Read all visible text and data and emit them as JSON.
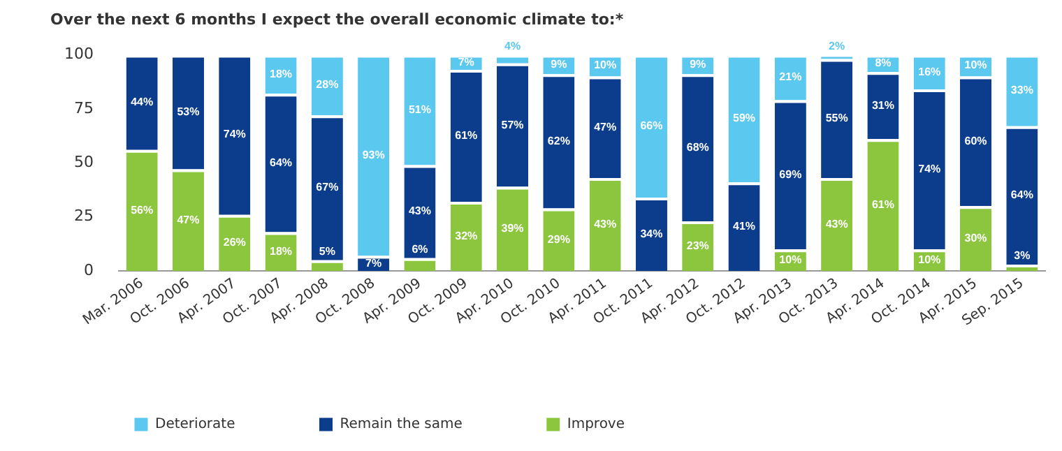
{
  "chart_data": {
    "type": "bar",
    "stacked": true,
    "title": "Over the next 6 months I expect the overall economic climate to:*",
    "categories": [
      "Mar. 2006",
      "Oct. 2006",
      "Apr. 2007",
      "Oct. 2007",
      "Apr. 2008",
      "Oct. 2008",
      "Apr. 2009",
      "Oct. 2009",
      "Apr. 2010",
      "Oct. 2010",
      "Apr. 2011",
      "Oct. 2011",
      "Apr. 2012",
      "Oct. 2012",
      "Apr. 2013",
      "Oct. 2013",
      "Apr. 2014",
      "Oct. 2014",
      "Apr. 2015",
      "Sep. 2015"
    ],
    "series": [
      {
        "name": "Improve",
        "color": "#8cc63f",
        "values": [
          56,
          47,
          26,
          18,
          5,
          null,
          6,
          32,
          39,
          29,
          43,
          null,
          23,
          null,
          10,
          43,
          61,
          10,
          30,
          3
        ],
        "value_labels": [
          "56%",
          "47%",
          "26%",
          "18%",
          "5%",
          null,
          "6%",
          "32%",
          "39%",
          "29%",
          "43%",
          null,
          "23%",
          null,
          "10%",
          "43%",
          "61%",
          "10%",
          "30%",
          "3%"
        ]
      },
      {
        "name": "Remain the same",
        "color": "#0b3d8c",
        "values": [
          44,
          53,
          74,
          64,
          67,
          7,
          43,
          61,
          57,
          62,
          47,
          34,
          68,
          41,
          69,
          55,
          31,
          74,
          60,
          64
        ],
        "value_labels": [
          "44%",
          "53%",
          "74%",
          "64%",
          "67%",
          "7%",
          "43%",
          "61%",
          "57%",
          "62%",
          "47%",
          "34%",
          "68%",
          "41%",
          "69%",
          "55%",
          "31%",
          "74%",
          "60%",
          "64%"
        ]
      },
      {
        "name": "Deteriorate",
        "color": "#5bc8f0",
        "values": [
          null,
          null,
          null,
          18,
          28,
          93,
          51,
          7,
          4,
          9,
          10,
          66,
          9,
          59,
          21,
          2,
          8,
          16,
          10,
          33
        ],
        "value_labels": [
          null,
          null,
          null,
          "18%",
          "28%",
          "93%",
          "51%",
          "7%",
          "4%",
          "9%",
          "10%",
          "66%",
          "9%",
          "59%",
          "21%",
          "2%",
          "8%",
          "16%",
          "10%",
          "33%"
        ]
      }
    ],
    "ylim": [
      0,
      100
    ],
    "yticks": [
      0,
      25,
      50,
      75,
      100
    ],
    "grid": false,
    "legend": "bottom left"
  }
}
